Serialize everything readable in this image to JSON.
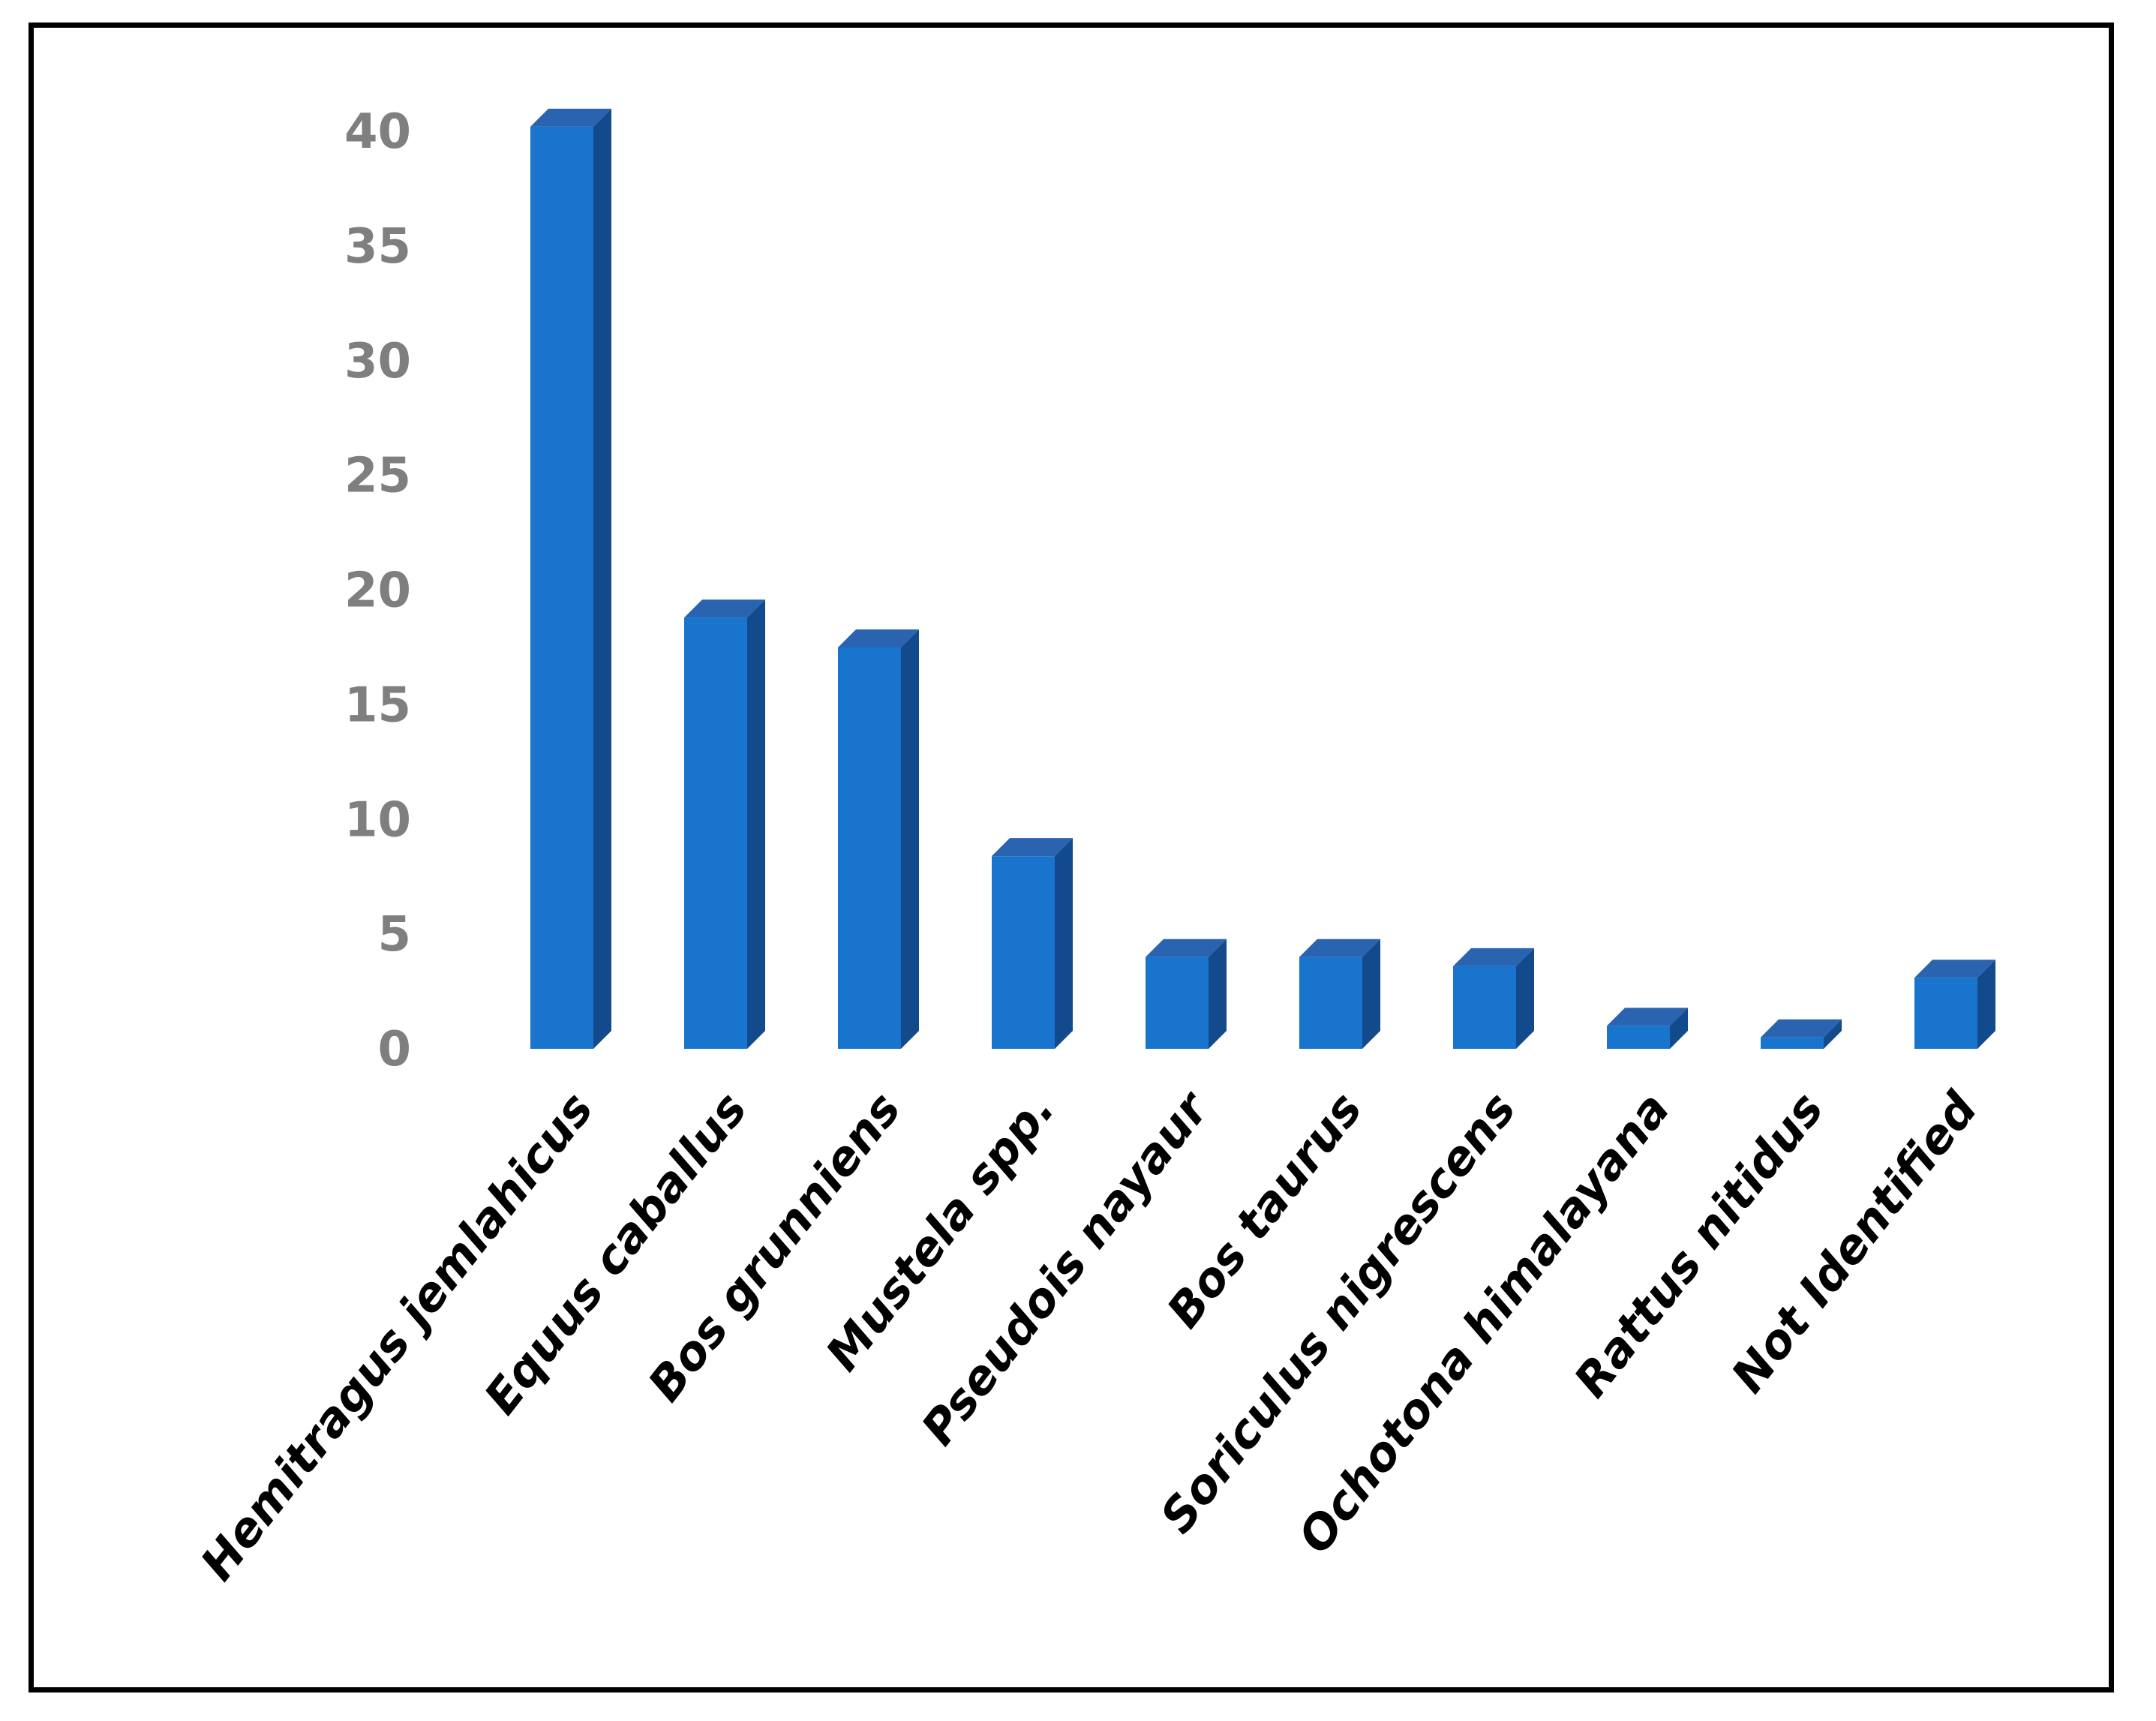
{
  "chart_data": {
    "type": "bar",
    "style": "3d-column",
    "categories": [
      "Hemitragus jemlahicus",
      "Equus caballus",
      "Bos grunniens",
      "Mustela spp.",
      "Pseudois nayaur",
      "Bos taurus",
      "Soriculus nigrescens",
      "Ochotona himalayana",
      "Rattus nitidus",
      "Not Identified"
    ],
    "values": [
      40.2,
      18.8,
      17.5,
      8.4,
      4.0,
      4.0,
      3.6,
      1.0,
      0.5,
      3.1
    ],
    "ylim": [
      0,
      40
    ],
    "yticks": [
      "0",
      "5",
      "10",
      "15",
      "20",
      "25",
      "30",
      "35",
      "40"
    ],
    "grid": false,
    "legend": false,
    "colors": {
      "front": "#1874CD",
      "top": "#2A63B0",
      "side": "#124A8C",
      "ytick": "#7F7F7F",
      "xtick": "#000000"
    }
  }
}
